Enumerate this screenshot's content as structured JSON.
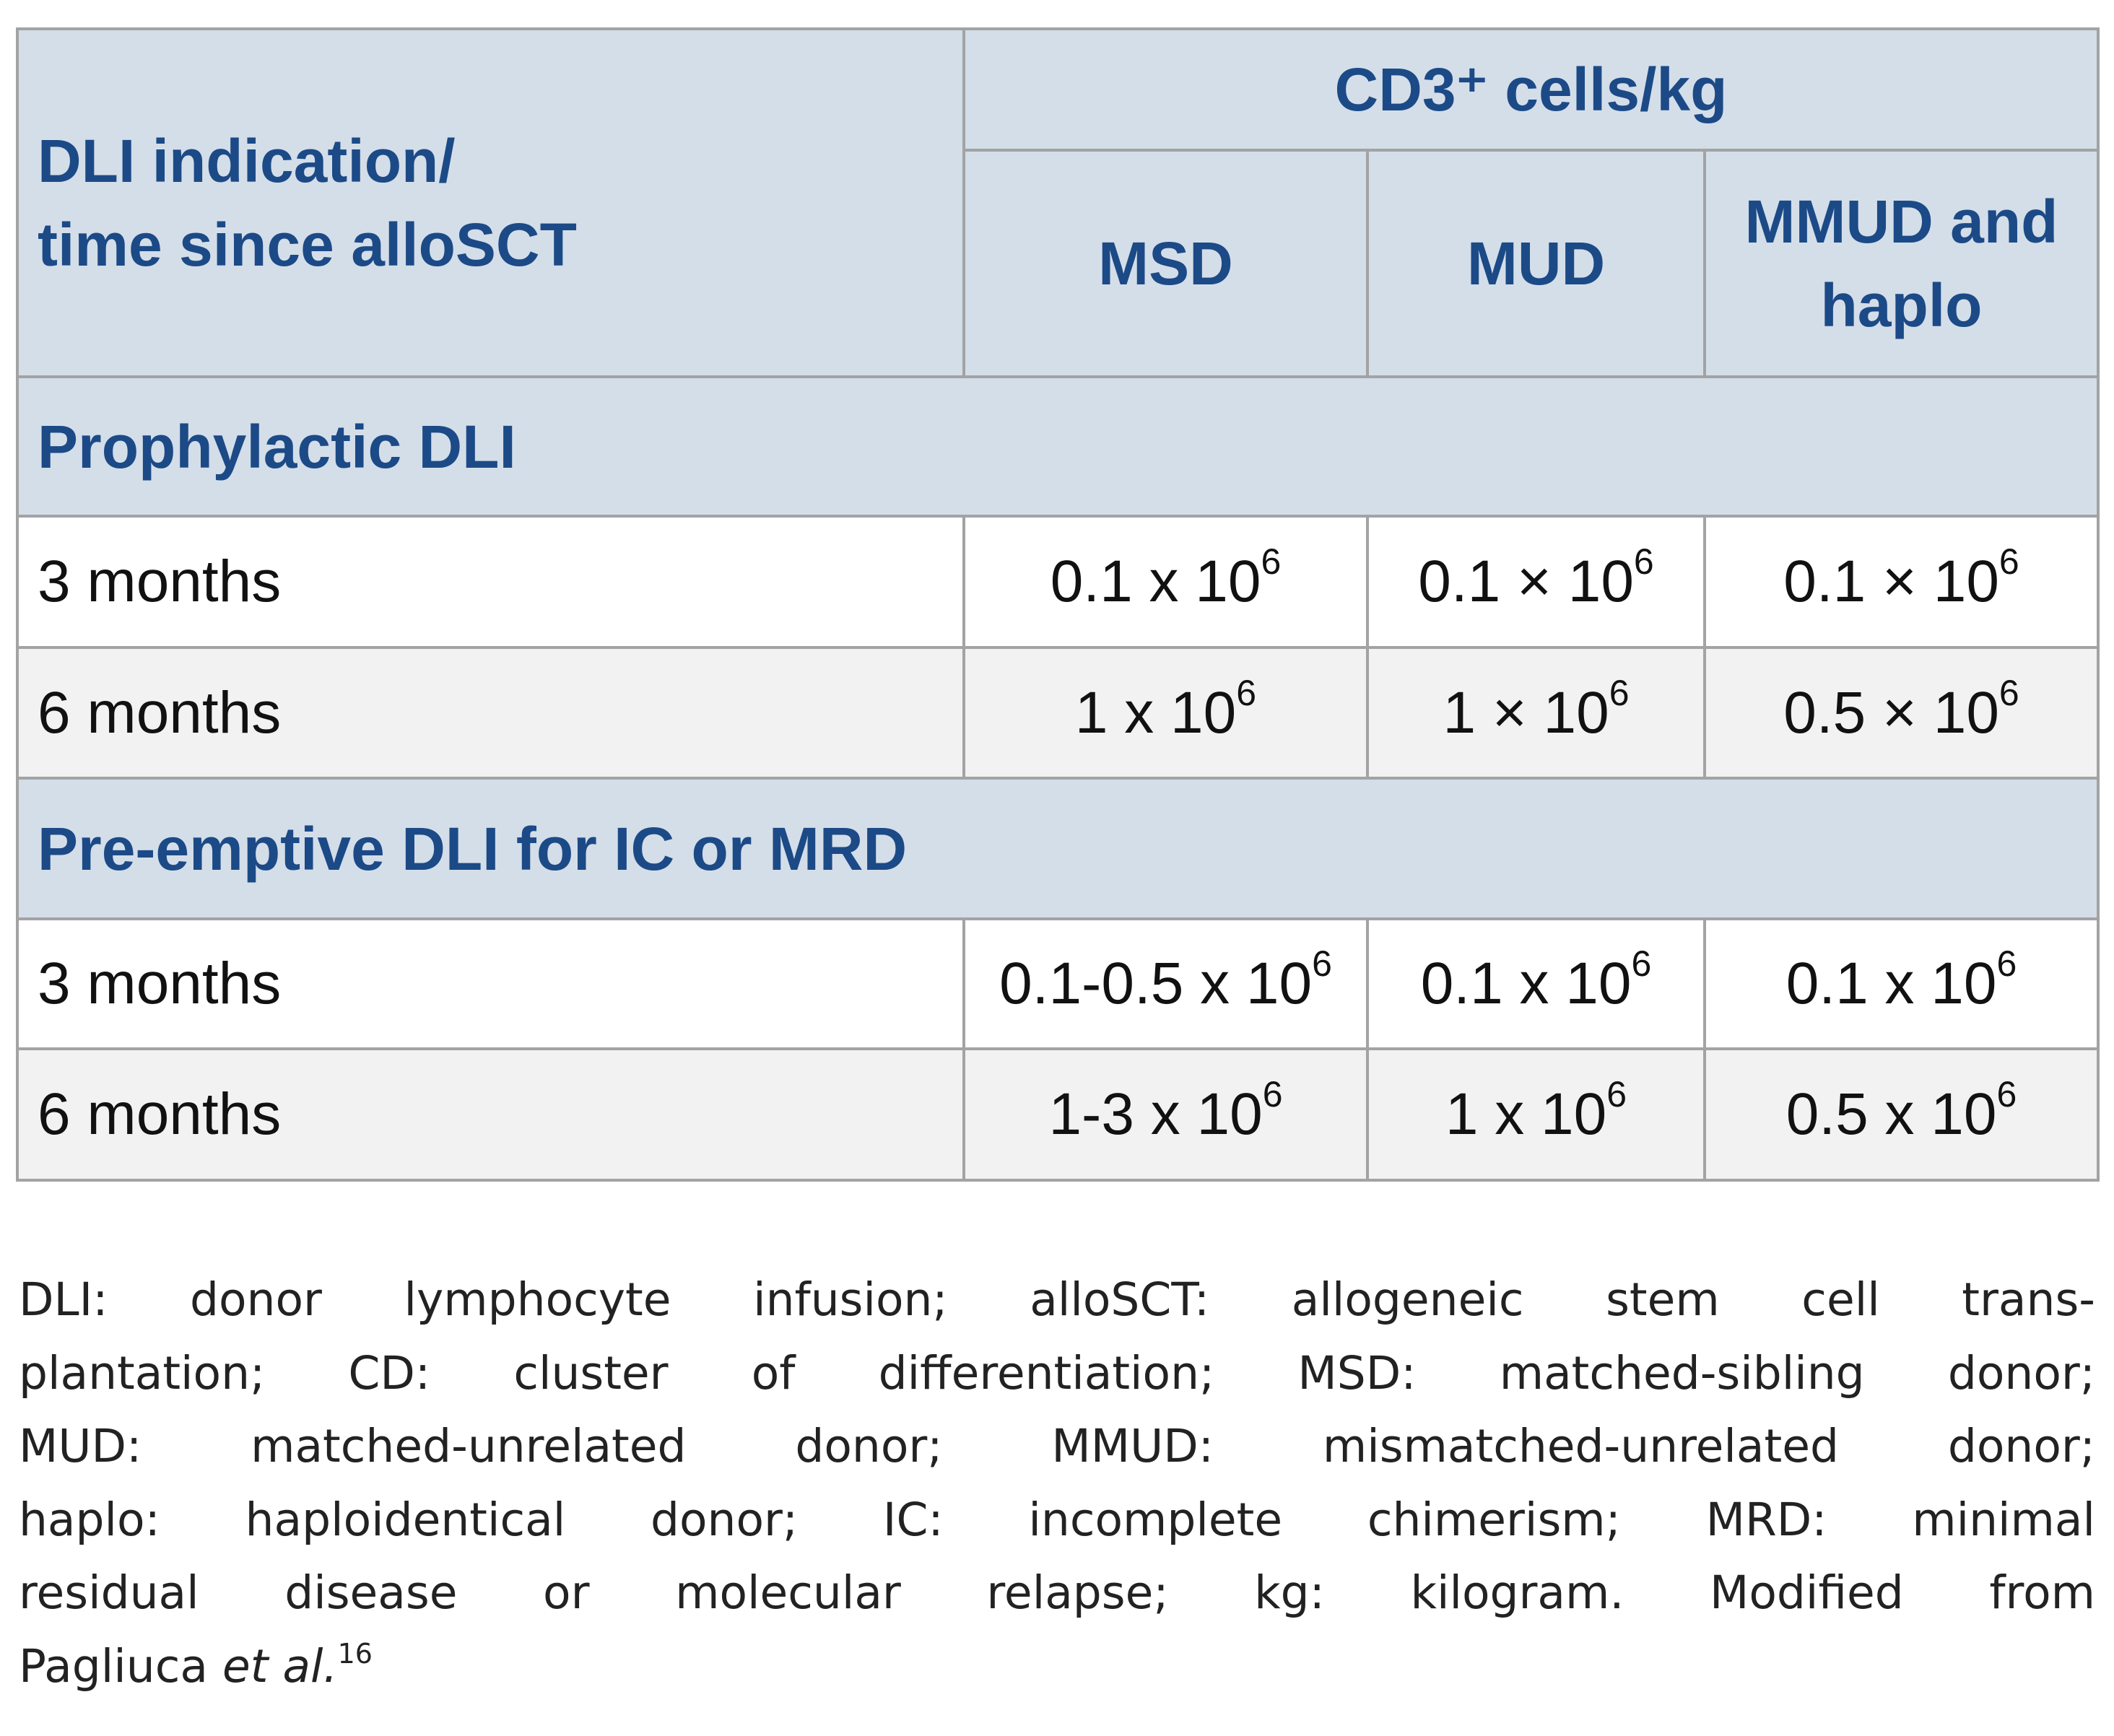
{
  "table": {
    "header": {
      "row_label_lines": [
        "DLI indication/",
        "time since alloSCT"
      ],
      "group": "CD3⁺ cells/kg",
      "columns": [
        [
          "MSD"
        ],
        [
          "MUD"
        ],
        [
          "MMUD and",
          "haplo"
        ]
      ]
    },
    "sections": [
      {
        "title": "Prophylactic DLI",
        "rows": [
          {
            "label": "3 months",
            "cells": [
              {
                "text": "0.1 x 10",
                "sup": "6"
              },
              {
                "text": "0.1 × 10",
                "sup": "6"
              },
              {
                "text": "0.1 × 10",
                "sup": "6"
              }
            ]
          },
          {
            "label": "6 months",
            "cells": [
              {
                "text": "1 x 10",
                "sup": "6"
              },
              {
                "text": "1 × 10",
                "sup": "6"
              },
              {
                "text": "0.5 × 10",
                "sup": "6"
              }
            ]
          }
        ]
      },
      {
        "title": "Pre-emptive DLI for IC or MRD",
        "rows": [
          {
            "label": "3 months",
            "cells": [
              {
                "text": "0.1-0.5 x 10",
                "sup": "6"
              },
              {
                "text": "0.1 x 10",
                "sup": "6"
              },
              {
                "text": "0.1 x 10",
                "sup": "6"
              }
            ]
          },
          {
            "label": "6 months",
            "cells": [
              {
                "text": "1-3 x 10",
                "sup": "6"
              },
              {
                "text": "1 x 10",
                "sup": "6"
              },
              {
                "text": "0.5 x 10",
                "sup": "6"
              }
            ]
          }
        ]
      }
    ]
  },
  "footnote": {
    "lines": [
      "DLI: donor lymphocyte infusion; alloSCT: allogeneic stem cell trans-",
      "plantation; CD: cluster of differentiation; MSD: matched-sibling donor;",
      "MUD: matched-unrelated donor; MMUD: mismatched-unrelated donor;",
      "haplo: haploidentical donor; IC: incomplete chimerism; MRD: minimal",
      "residual disease or molecular relapse; kg: kilogram. Modified from"
    ],
    "last": {
      "text": "Pagliuca ",
      "italic": "et al.",
      "sup": "16"
    }
  }
}
